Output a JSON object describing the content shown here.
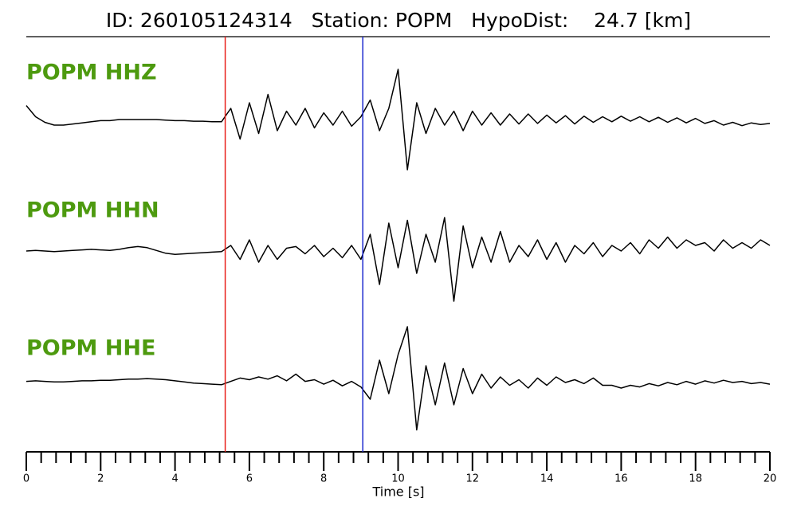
{
  "chart_data": {
    "type": "seismogram",
    "title": "ID: 260105124314   Station: POPM   HypoDist:    24.7 [km]",
    "xlabel": "Time [s]",
    "xlim": [
      0,
      20
    ],
    "xticks": [
      0,
      2,
      4,
      6,
      8,
      10,
      12,
      14,
      16,
      18,
      20
    ],
    "xminorticks": [
      0.4,
      0.8,
      1.2,
      1.6,
      2.4,
      2.8,
      3.2,
      3.6,
      4.4,
      4.8,
      5.2,
      5.6,
      6.4,
      6.8,
      7.2,
      7.6,
      8.4,
      8.8,
      9.2,
      9.6,
      10.4,
      10.8,
      11.2,
      11.6,
      12.4,
      12.8,
      13.2,
      13.6,
      14.4,
      14.8,
      15.2,
      15.6,
      16.4,
      16.8,
      17.2,
      17.6,
      18.4,
      18.8,
      19.2,
      19.6
    ],
    "label_color": "#4d9a0f",
    "markers": [
      {
        "x": 5.35,
        "color": "#e8201a"
      },
      {
        "x": 9.05,
        "color": "#1f2bd0"
      }
    ],
    "x": [
      0,
      0.25,
      0.5,
      0.75,
      1,
      1.25,
      1.5,
      1.75,
      2,
      2.25,
      2.5,
      2.75,
      3,
      3.25,
      3.5,
      3.75,
      4,
      4.25,
      4.5,
      4.75,
      5,
      5.25,
      5.5,
      5.75,
      6,
      6.25,
      6.5,
      6.75,
      7,
      7.25,
      7.5,
      7.75,
      8,
      8.25,
      8.5,
      8.75,
      9,
      9.25,
      9.5,
      9.75,
      10,
      10.25,
      10.5,
      10.75,
      11,
      11.25,
      11.5,
      11.75,
      12,
      12.25,
      12.5,
      12.75,
      13,
      13.25,
      13.5,
      13.75,
      14,
      14.25,
      14.5,
      14.75,
      15,
      15.25,
      15.5,
      15.75,
      16,
      16.25,
      16.5,
      16.75,
      17,
      17.25,
      17.5,
      17.75,
      18,
      18.25,
      18.5,
      18.75,
      19,
      19.25,
      19.5,
      19.75,
      20
    ],
    "series": [
      {
        "name": "POPM HHZ",
        "color": "#000000",
        "values": [
          0.25,
          0.05,
          -0.05,
          -0.1,
          -0.1,
          -0.08,
          -0.06,
          -0.04,
          -0.02,
          -0.02,
          0,
          0,
          0,
          0,
          0,
          -0.01,
          -0.02,
          -0.02,
          -0.03,
          -0.03,
          -0.04,
          -0.04,
          0.2,
          -0.35,
          0.3,
          -0.25,
          0.45,
          -0.2,
          0.15,
          -0.1,
          0.2,
          -0.15,
          0.12,
          -0.1,
          0.15,
          -0.12,
          0.05,
          0.35,
          -0.2,
          0.2,
          0.9,
          -0.9,
          0.3,
          -0.25,
          0.2,
          -0.1,
          0.15,
          -0.2,
          0.15,
          -0.1,
          0.12,
          -0.1,
          0.1,
          -0.08,
          0.1,
          -0.07,
          0.08,
          -0.06,
          0.07,
          -0.08,
          0.06,
          -0.05,
          0.05,
          -0.04,
          0.06,
          -0.03,
          0.05,
          -0.04,
          0.04,
          -0.05,
          0.03,
          -0.06,
          0.02,
          -0.07,
          -0.02,
          -0.1,
          -0.05,
          -0.11,
          -0.06,
          -0.09,
          -0.07
        ]
      },
      {
        "name": "POPM HHN",
        "color": "#000000",
        "values": [
          0,
          0.01,
          0,
          -0.01,
          0,
          0.01,
          0.02,
          0.03,
          0.02,
          0.01,
          0.03,
          0.06,
          0.08,
          0.06,
          0.01,
          -0.04,
          -0.06,
          -0.05,
          -0.04,
          -0.03,
          -0.02,
          -0.01,
          0.1,
          -0.15,
          0.2,
          -0.2,
          0.1,
          -0.15,
          0.05,
          0.08,
          -0.05,
          0.1,
          -0.1,
          0.05,
          -0.12,
          0.1,
          -0.15,
          0.3,
          -0.6,
          0.5,
          -0.3,
          0.55,
          -0.4,
          0.3,
          -0.2,
          0.6,
          -0.9,
          0.45,
          -0.3,
          0.25,
          -0.2,
          0.35,
          -0.2,
          0.1,
          -0.1,
          0.2,
          -0.15,
          0.15,
          -0.2,
          0.1,
          -0.05,
          0.15,
          -0.1,
          0.1,
          0,
          0.15,
          -0.05,
          0.2,
          0.05,
          0.25,
          0.05,
          0.2,
          0.1,
          0.15,
          0,
          0.2,
          0.05,
          0.15,
          0.05,
          0.2,
          0.1
        ]
      },
      {
        "name": "POPM HHE",
        "color": "#000000",
        "values": [
          0.02,
          0.03,
          0.02,
          0.01,
          0.01,
          0.02,
          0.03,
          0.03,
          0.04,
          0.04,
          0.05,
          0.06,
          0.06,
          0.07,
          0.06,
          0.05,
          0.03,
          0.01,
          -0.01,
          -0.02,
          -0.03,
          -0.04,
          0.02,
          0.08,
          0.05,
          0.1,
          0.06,
          0.12,
          0.03,
          0.15,
          0.02,
          0.05,
          -0.03,
          0.04,
          -0.06,
          0.02,
          -0.08,
          -0.3,
          0.4,
          -0.2,
          0.5,
          1.0,
          -0.85,
          0.3,
          -0.4,
          0.35,
          -0.4,
          0.25,
          -0.2,
          0.15,
          -0.1,
          0.1,
          -0.05,
          0.05,
          -0.1,
          0.08,
          -0.05,
          0.1,
          0,
          0.05,
          -0.02,
          0.08,
          -0.05,
          -0.05,
          -0.1,
          -0.05,
          -0.08,
          -0.02,
          -0.06,
          0,
          -0.04,
          0.02,
          -0.03,
          0.03,
          -0.01,
          0.04,
          0,
          0.02,
          -0.02,
          0,
          -0.03
        ]
      }
    ]
  }
}
